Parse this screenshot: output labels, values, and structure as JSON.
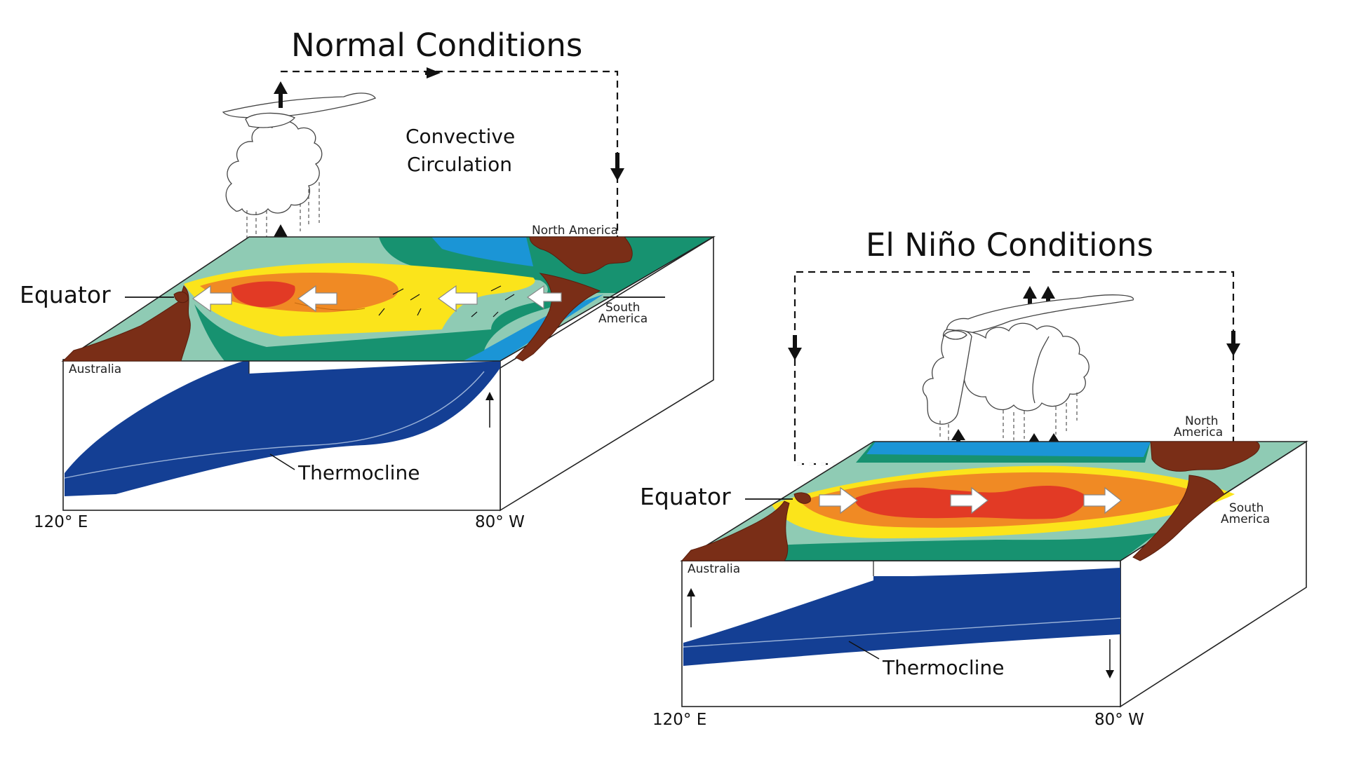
{
  "normal": {
    "title": "Normal Conditions",
    "circulation_label_line1": "Convective",
    "circulation_label_line2": "Circulation",
    "equator": "Equator",
    "north_america": "North America",
    "south_america_line1": "South",
    "south_america_line2": "America",
    "australia": "Australia",
    "thermocline": "Thermocline",
    "west_coord": "120° E",
    "east_coord": "80° W"
  },
  "elnino": {
    "title": "El Niño Conditions",
    "equator": "Equator",
    "north_america_line1": "North",
    "north_america_line2": "America",
    "south_america_line1": "South",
    "south_america_line2": "America",
    "australia": "Australia",
    "thermocline": "Thermocline",
    "west_coord": "120° E",
    "east_coord": "80° W"
  },
  "colors": {
    "red": "#e23a25",
    "orange": "#f08a24",
    "yellow": "#fbe41b",
    "light_green": "#8fcbb4",
    "green": "#179270",
    "blue": "#1b95d6",
    "deep_blue": "#143f94",
    "land": "#7a2e17"
  }
}
